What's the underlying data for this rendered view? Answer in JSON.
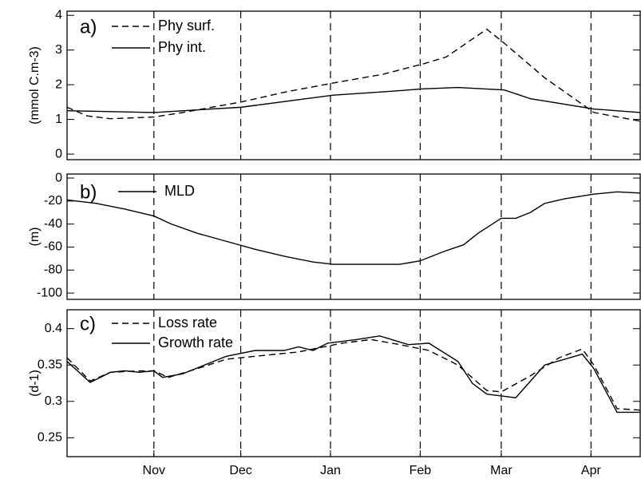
{
  "chart_data": [
    {
      "type": "line",
      "panel_label": "a)",
      "ylabel": "(mmol C.m-3)",
      "xlim": [
        0,
        198
      ],
      "ylim": [
        -0.16,
        4.12
      ],
      "yticks": [
        0,
        1,
        2,
        3,
        4
      ],
      "series": [
        {
          "name": "Phy surf.",
          "color": "#000000",
          "style": "dashed",
          "x": [
            0,
            7,
            15,
            30,
            40,
            60,
            76,
            92,
            109,
            123,
            131,
            145,
            151,
            165,
            182,
            198
          ],
          "values": [
            1.35,
            1.1,
            1.02,
            1.07,
            1.2,
            1.5,
            1.8,
            2.05,
            2.3,
            2.6,
            2.8,
            3.6,
            3.2,
            2.2,
            1.2,
            0.95
          ]
        },
        {
          "name": "Phy int.",
          "color": "#000000",
          "style": "solid",
          "x": [
            0,
            30,
            60,
            92,
            110,
            123,
            135,
            151,
            160,
            182,
            198
          ],
          "values": [
            1.25,
            1.2,
            1.35,
            1.7,
            1.8,
            1.88,
            1.92,
            1.85,
            1.6,
            1.3,
            1.2
          ]
        }
      ]
    },
    {
      "type": "line",
      "panel_label": "b)",
      "ylabel": "(m)",
      "xlim": [
        0,
        198
      ],
      "ylim": [
        -105.5,
        3.5
      ],
      "yticks": [
        0,
        -20,
        -40,
        -60,
        -80,
        -100
      ],
      "series": [
        {
          "name": "MLD",
          "color": "#000000",
          "style": "solid",
          "x": [
            0,
            10,
            20,
            30,
            36,
            45,
            55,
            65,
            75,
            85,
            92,
            105,
            115,
            122,
            130,
            137,
            142,
            150,
            155,
            160,
            165,
            172,
            182,
            190,
            198
          ],
          "values": [
            -19,
            -22,
            -27,
            -33,
            -40,
            -48,
            -55,
            -62,
            -68,
            -73,
            -75,
            -75,
            -75,
            -72,
            -64,
            -58,
            -48,
            -35,
            -35,
            -30,
            -22,
            -18,
            -14,
            -12,
            -13
          ]
        }
      ]
    },
    {
      "type": "line",
      "panel_label": "c)",
      "ylabel": "(d-1)",
      "xlim": [
        0,
        198
      ],
      "ylim": [
        0.224,
        0.426
      ],
      "yticks": [
        0.25,
        0.3,
        0.35,
        0.4
      ],
      "xticks": [
        {
          "value": 30,
          "label": "Nov"
        },
        {
          "value": 60,
          "label": "Dec"
        },
        {
          "value": 91,
          "label": "Jan"
        },
        {
          "value": 122,
          "label": "Feb"
        },
        {
          "value": 150,
          "label": "Mar"
        },
        {
          "value": 181,
          "label": "Apr"
        }
      ],
      "series": [
        {
          "name": "Loss rate",
          "color": "#000000",
          "style": "dashed",
          "x": [
            0,
            8,
            15,
            25,
            30,
            35,
            45,
            55,
            65,
            80,
            95,
            105,
            115,
            125,
            135,
            145,
            150,
            160,
            170,
            178,
            182,
            190,
            198
          ],
          "values": [
            0.36,
            0.328,
            0.34,
            0.342,
            0.342,
            0.333,
            0.345,
            0.358,
            0.362,
            0.368,
            0.38,
            0.385,
            0.378,
            0.37,
            0.35,
            0.315,
            0.313,
            0.335,
            0.36,
            0.372,
            0.35,
            0.29,
            0.288
          ]
        },
        {
          "name": "Growth rate",
          "color": "#000000",
          "style": "solid",
          "x": [
            0,
            8,
            15,
            20,
            25,
            30,
            33,
            40,
            55,
            65,
            75,
            80,
            85,
            90,
            100,
            108,
            118,
            125,
            135,
            140,
            145,
            155,
            165,
            178,
            182,
            190,
            198
          ],
          "values": [
            0.355,
            0.326,
            0.34,
            0.342,
            0.34,
            0.342,
            0.333,
            0.338,
            0.362,
            0.37,
            0.37,
            0.375,
            0.37,
            0.38,
            0.385,
            0.39,
            0.378,
            0.38,
            0.355,
            0.325,
            0.31,
            0.305,
            0.35,
            0.365,
            0.345,
            0.285,
            0.285
          ]
        }
      ]
    }
  ]
}
